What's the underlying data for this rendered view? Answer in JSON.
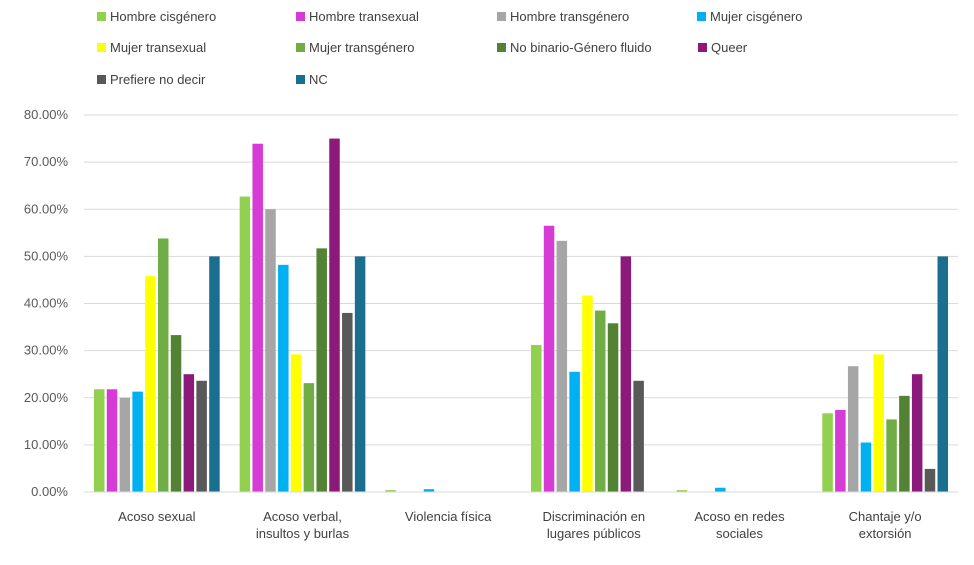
{
  "chart_data": {
    "type": "bar",
    "title": "",
    "xlabel": "",
    "ylabel": "",
    "ylim": [
      0,
      80
    ],
    "y_ticks": [
      "0.00%",
      "10.00%",
      "20.00%",
      "30.00%",
      "40.00%",
      "50.00%",
      "60.00%",
      "70.00%",
      "80.00%"
    ],
    "y_tick_values": [
      0,
      10,
      20,
      30,
      40,
      50,
      60,
      70,
      80
    ],
    "grid": true,
    "legend_position": "top",
    "categories": [
      [
        "Acoso sexual"
      ],
      [
        "Acoso verbal,",
        "insultos y burlas"
      ],
      [
        "Violencia física"
      ],
      [
        "Discriminación en",
        "lugares públicos"
      ],
      [
        "Acoso en redes",
        "sociales"
      ],
      [
        "Chantaje y/o",
        "extorsión"
      ]
    ],
    "series": [
      {
        "name": "Hombre cisgénero",
        "color": "#92d050",
        "values": [
          21.8,
          62.7,
          0.4,
          31.2,
          0.4,
          16.7
        ]
      },
      {
        "name": "Hombre transexual",
        "color": "#d63bd6",
        "values": [
          21.8,
          73.9,
          0,
          56.5,
          0,
          17.4
        ]
      },
      {
        "name": "Hombre transgénero",
        "color": "#a6a6a6",
        "values": [
          20.0,
          60.0,
          0,
          53.3,
          0,
          26.7
        ]
      },
      {
        "name": "Mujer cisgénero",
        "color": "#00b0f0",
        "values": [
          21.3,
          48.2,
          0.6,
          25.5,
          0.9,
          10.5
        ]
      },
      {
        "name": "Mujer transexual",
        "color": "#ffff00",
        "values": [
          45.8,
          29.2,
          0,
          41.7,
          0,
          29.2
        ]
      },
      {
        "name": "Mujer transgénero",
        "color": "#70ad47",
        "values": [
          53.8,
          23.1,
          0,
          38.5,
          0,
          15.4
        ]
      },
      {
        "name": "No binario-Género fluido",
        "color": "#548235",
        "values": [
          33.3,
          51.7,
          0,
          35.8,
          0,
          20.4
        ]
      },
      {
        "name": "Queer",
        "color": "#8b1a7a",
        "values": [
          25.0,
          75.0,
          0,
          50.0,
          0,
          25.0
        ]
      },
      {
        "name": "Prefiere no decir",
        "color": "#595959",
        "values": [
          23.6,
          38.0,
          0,
          23.6,
          0,
          4.9
        ]
      },
      {
        "name": "NC",
        "color": "#1b6f8e",
        "values": [
          50.0,
          50.0,
          0,
          0,
          0,
          50.0
        ]
      }
    ]
  }
}
